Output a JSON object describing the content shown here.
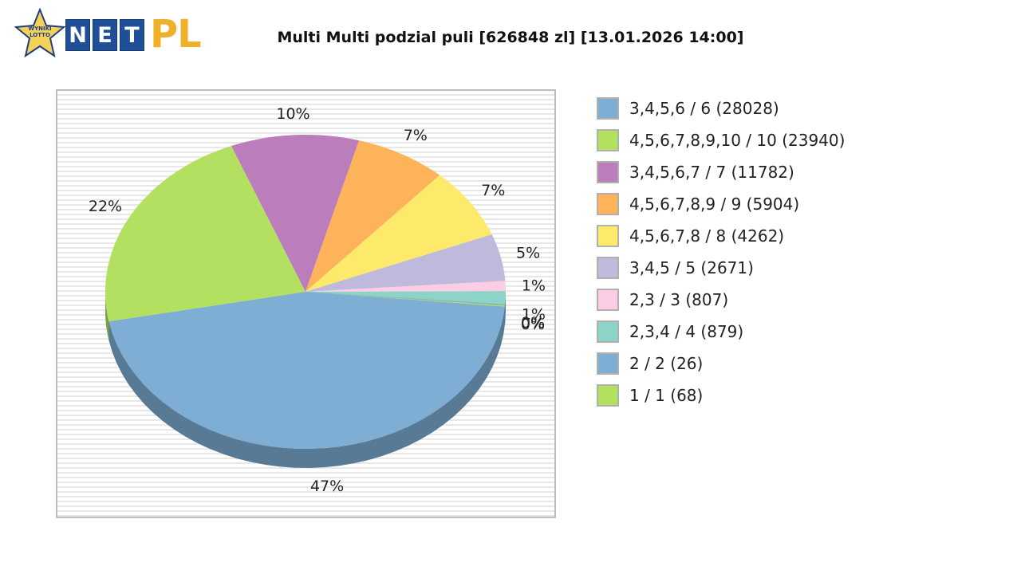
{
  "logo": {
    "badge_text": "WYNIKI LOTTO",
    "letters": [
      "N",
      "E",
      "T"
    ],
    "suffix": "PL"
  },
  "chart_data": {
    "type": "pie",
    "title": "Multi Multi podzial puli [626848 zl] [13.01.2026 14:00]",
    "legend_position": "right",
    "slices": [
      {
        "label": "3,4,5,6 / 6 (28028)",
        "value": 28028,
        "percent_label": "47%",
        "color": "#7eaed4"
      },
      {
        "label": "4,5,6,7,8,9,10 / 10 (23940)",
        "value": 23940,
        "percent_label": "22%",
        "color": "#b4e061"
      },
      {
        "label": "3,4,5,6,7 / 7 (11782)",
        "value": 11782,
        "percent_label": "10%",
        "color": "#bb7dbb"
      },
      {
        "label": "4,5,6,7,8,9 / 9 (5904)",
        "value": 5904,
        "percent_label": "7%",
        "color": "#fdb35a"
      },
      {
        "label": "4,5,6,7,8 / 8 (4262)",
        "value": 4262,
        "percent_label": "7%",
        "color": "#feea6a"
      },
      {
        "label": "3,4,5 / 5 (2671)",
        "value": 2671,
        "percent_label": "5%",
        "color": "#bfb9db"
      },
      {
        "label": "2,3 / 3 (807)",
        "value": 807,
        "percent_label": "1%",
        "color": "#fccde5"
      },
      {
        "label": "2,3,4 / 4 (879)",
        "value": 879,
        "percent_label": "1%",
        "color": "#8dd3c7"
      },
      {
        "label": "2 / 2 (26)",
        "value": 26,
        "percent_label": "0%",
        "color": "#7eaed4"
      },
      {
        "label": "1 / 1 (68)",
        "value": 68,
        "percent_label": "0%",
        "color": "#b4e061"
      }
    ],
    "slice_shares": [
      0.4698,
      0.2198,
      0.1035,
      0.0738,
      0.0735,
      0.0485,
      0.0104,
      0.0135,
      0.0012,
      0.0012
    ]
  }
}
